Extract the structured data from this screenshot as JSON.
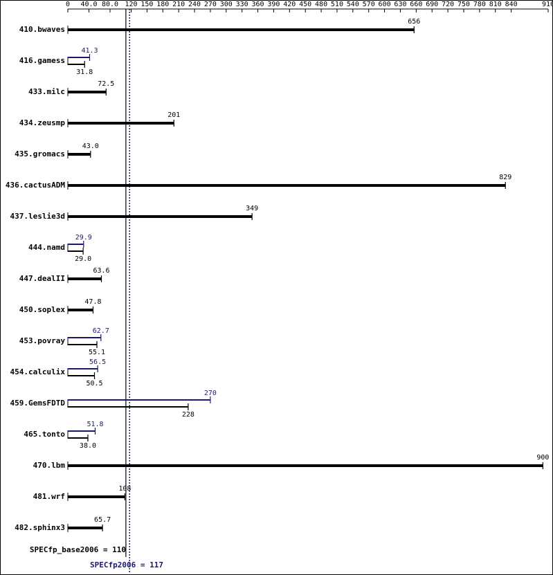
{
  "chart_data": {
    "type": "bar",
    "orientation": "horizontal",
    "categories": [
      "410.bwaves",
      "416.gamess",
      "433.milc",
      "434.zeusmp",
      "435.gromacs",
      "436.cactusADM",
      "437.leslie3d",
      "444.namd",
      "447.dealII",
      "450.soplex",
      "453.povray",
      "454.calculix",
      "459.GemsFDTD",
      "465.tonto",
      "470.lbm",
      "481.wrf",
      "482.sphinx3"
    ],
    "series": [
      {
        "color": "#000000",
        "values": [
          656,
          31.8,
          72.5,
          201,
          43.0,
          829,
          349,
          29.0,
          63.6,
          47.8,
          55.1,
          50.5,
          228,
          38.0,
          900,
          108,
          65.7
        ],
        "value_labels": [
          "656",
          "31.8",
          "72.5",
          "201",
          "43.0",
          "829",
          "349",
          "29.0",
          "63.6",
          "47.8",
          "55.1",
          "50.5",
          "228",
          "38.0",
          "900",
          "108",
          "65.7"
        ]
      },
      {
        "color": "#191970",
        "values": [
          null,
          41.3,
          null,
          null,
          null,
          null,
          null,
          29.9,
          null,
          null,
          62.7,
          56.5,
          270,
          51.8,
          null,
          null,
          null
        ],
        "value_labels": [
          null,
          "41.3",
          null,
          null,
          null,
          null,
          null,
          "29.9",
          null,
          null,
          "62.7",
          "56.5",
          "270",
          "51.8",
          null,
          null,
          null
        ]
      }
    ],
    "xlim": [
      0,
      910
    ],
    "xticks": [
      0,
      {
        "value": 40,
        "label": "40.0"
      },
      {
        "value": 80,
        "label": "80.0"
      },
      120,
      150,
      180,
      210,
      240,
      270,
      300,
      330,
      360,
      390,
      420,
      450,
      480,
      510,
      540,
      570,
      600,
      630,
      660,
      690,
      720,
      750,
      780,
      810,
      840,
      910
    ],
    "reference_lines": [
      {
        "label": "SPECfp_base2006 = 110",
        "value": 110,
        "color": "#000000",
        "style": "solid"
      },
      {
        "label": "SPECfp2006 = 117",
        "value": 117,
        "color": "#191970",
        "style": "dotted"
      }
    ]
  }
}
